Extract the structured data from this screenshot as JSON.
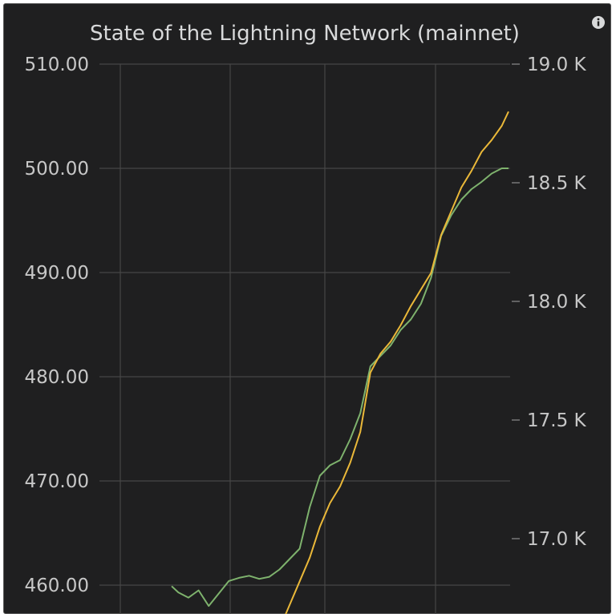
{
  "panel": {
    "title": "State of the Lightning Network (mainnet)",
    "info_icon": "info-circle-icon"
  },
  "colors": {
    "background": "#1f1f20",
    "grid": "#464646",
    "green_series": "#7eb26d",
    "yellow_series": "#eab839",
    "text": "#d8d9da"
  },
  "chart_data": {
    "type": "line",
    "title": "State of the Lightning Network (mainnet)",
    "xlabel": "",
    "ylabel": "",
    "grid": true,
    "legend": "none",
    "y_left": {
      "ticks": [
        "510.00",
        "500.00",
        "490.00",
        "480.00",
        "470.00",
        "460.00"
      ],
      "ylim": [
        459,
        510
      ]
    },
    "y_right": {
      "ticks": [
        "19.0 K",
        "18.5 K",
        "18.0 K",
        "17.5 K",
        "17.0 K"
      ],
      "ylim": [
        16.6,
        19.0
      ]
    },
    "series": [
      {
        "color": "#7eb26d",
        "axis": "left",
        "x": [
          0,
          2,
          5,
          8,
          11,
          14,
          17,
          20,
          23,
          26,
          29,
          32,
          35,
          38,
          41,
          44,
          47,
          50,
          53,
          56,
          59,
          62,
          65,
          68,
          71,
          74,
          77,
          80,
          83,
          86,
          89,
          92,
          95,
          98,
          100
        ],
        "y": [
          459.9,
          459.3,
          458.8,
          459.5,
          458.0,
          459.2,
          460.4,
          460.7,
          460.9,
          460.6,
          460.8,
          461.5,
          462.5,
          463.5,
          467.5,
          470.5,
          471.5,
          472.0,
          474.0,
          476.5,
          481.0,
          482.0,
          483.0,
          484.5,
          485.5,
          487.0,
          489.5,
          493.5,
          495.5,
          497.0,
          498.0,
          498.7,
          499.5,
          500.0,
          500.0
        ]
      },
      {
        "color": "#eab839",
        "axis": "right",
        "x": [
          32,
          35,
          38,
          41,
          44,
          47,
          50,
          53,
          56,
          59,
          62,
          65,
          68,
          71,
          74,
          77,
          80,
          83,
          86,
          89,
          92,
          95,
          98,
          100
        ],
        "y": [
          16.62,
          16.72,
          16.82,
          16.92,
          17.05,
          17.15,
          17.22,
          17.32,
          17.45,
          17.7,
          17.78,
          17.83,
          17.9,
          17.98,
          18.05,
          18.12,
          18.28,
          18.38,
          18.48,
          18.55,
          18.63,
          18.68,
          18.74,
          18.8
        ]
      }
    ]
  }
}
